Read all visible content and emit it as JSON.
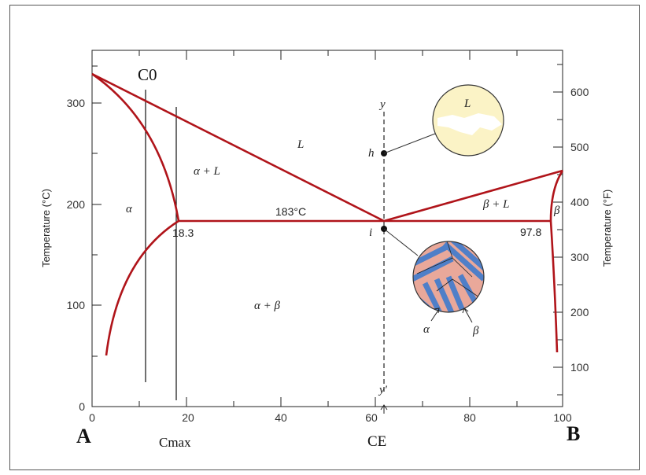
{
  "diagram": {
    "phase_labels": {
      "liquid": "L",
      "alpha_plus_liquid": "α + L",
      "alpha": "α",
      "beta_plus_liquid": "β + L",
      "beta": "β",
      "alpha_plus_beta": "α + β"
    },
    "eutectic_temperature": "183°C",
    "alpha_max_solubility": "18.3",
    "beta_max_solubility": "97.8",
    "points": {
      "h": "h",
      "i": "i",
      "y_top": "y",
      "y_bottom": "y′"
    },
    "compositions": {
      "c0": "C0",
      "cmax": "Cmax",
      "ce": "CE",
      "component_a": "A",
      "component_b": "B"
    },
    "axes": {
      "left_title": "Temperature (°C)",
      "right_title": "Temperature (°F)",
      "x_ticks": [
        "0",
        "20",
        "40",
        "60",
        "80",
        "100"
      ],
      "y_left_ticks": [
        "0",
        "100",
        "200",
        "300"
      ],
      "y_right_ticks": [
        "100",
        "200",
        "300",
        "400",
        "500",
        "600"
      ]
    },
    "microstructure": {
      "liquid_circle_label": "L",
      "eutectic_alpha_label": "α",
      "eutectic_beta_label": "β"
    },
    "colors": {
      "phase_boundary": "#b0141a",
      "liquid_fill": "#fbf3c6",
      "alpha_lamella": "#e9a89a",
      "beta_lamella": "#4f7fc8"
    }
  }
}
